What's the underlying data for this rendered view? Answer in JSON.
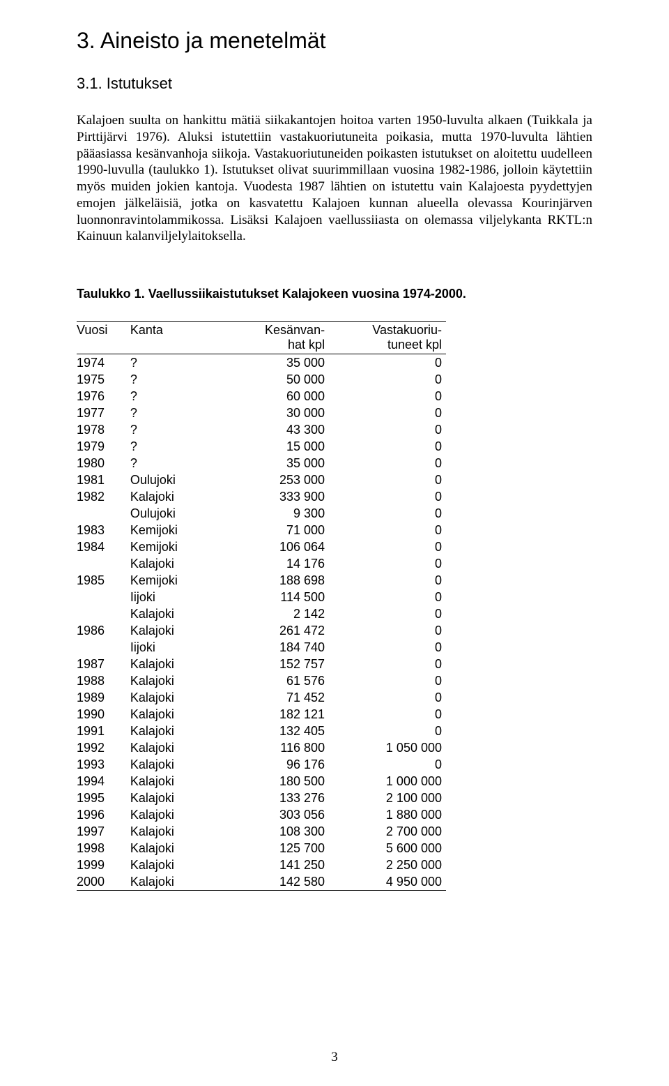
{
  "section": {
    "title": "3. Aineisto ja menetelmät",
    "subsection_title": "3.1. Istutukset",
    "body": "Kalajoen suulta on hankittu mätiä siikakantojen hoitoa varten 1950-luvulta alkaen (Tuikkala ja Pirttijärvi 1976). Aluksi istutettiin vastakuoriutuneita poikasia, mutta 1970-luvulta lähtien pääasiassa kesänvanhoja siikoja. Vastakuoriutuneiden poikasten istutukset on aloitettu uudelleen 1990-luvulla (taulukko 1). Istutukset olivat suurimmillaan vuosina 1982-1986, jolloin käytettiin myös muiden jokien kantoja. Vuodesta 1987 lähtien on istutettu vain Kalajoesta pyydettyjen emojen jälkeläisiä, jotka on kasvatettu Kalajoen kunnan alueella olevassa Kourinjärven luonnonravintolammikossa. Lisäksi Kalajoen vaellussiiasta on olemassa viljelykanta RKTL:n Kainuun kalanviljelylaitoksella."
  },
  "table": {
    "caption": "Taulukko 1. Vaellussiikaistutukset Kalajokeen vuosina 1974-2000.",
    "headers": {
      "col1": "Vuosi",
      "col2": "Kanta",
      "col3a": "Kesänvan-",
      "col3b": "hat kpl",
      "col4a": "Vastakuoriu-",
      "col4b": "tuneet kpl"
    },
    "rows": [
      {
        "year": "1974",
        "kanta": "?",
        "kesa": "35 000",
        "vasta": "0"
      },
      {
        "year": "1975",
        "kanta": "?",
        "kesa": "50 000",
        "vasta": "0"
      },
      {
        "year": "1976",
        "kanta": "?",
        "kesa": "60 000",
        "vasta": "0"
      },
      {
        "year": "1977",
        "kanta": "?",
        "kesa": "30 000",
        "vasta": "0"
      },
      {
        "year": "1978",
        "kanta": "?",
        "kesa": "43 300",
        "vasta": "0"
      },
      {
        "year": "1979",
        "kanta": "?",
        "kesa": "15 000",
        "vasta": "0"
      },
      {
        "year": "1980",
        "kanta": "?",
        "kesa": "35 000",
        "vasta": "0"
      },
      {
        "year": "1981",
        "kanta": "Oulujoki",
        "kesa": "253 000",
        "vasta": "0"
      },
      {
        "year": "1982",
        "kanta": "Kalajoki",
        "kesa": "333 900",
        "vasta": "0"
      },
      {
        "year": "",
        "kanta": "Oulujoki",
        "kesa": "9 300",
        "vasta": "0"
      },
      {
        "year": "1983",
        "kanta": "Kemijoki",
        "kesa": "71 000",
        "vasta": "0"
      },
      {
        "year": "1984",
        "kanta": "Kemijoki",
        "kesa": "106 064",
        "vasta": "0"
      },
      {
        "year": "",
        "kanta": "Kalajoki",
        "kesa": "14 176",
        "vasta": "0"
      },
      {
        "year": "1985",
        "kanta": "Kemijoki",
        "kesa": "188 698",
        "vasta": "0"
      },
      {
        "year": "",
        "kanta": "Iijoki",
        "kesa": "114 500",
        "vasta": "0"
      },
      {
        "year": "",
        "kanta": "Kalajoki",
        "kesa": "2 142",
        "vasta": "0"
      },
      {
        "year": "1986",
        "kanta": "Kalajoki",
        "kesa": "261 472",
        "vasta": "0"
      },
      {
        "year": "",
        "kanta": "Iijoki",
        "kesa": "184 740",
        "vasta": "0"
      },
      {
        "year": "1987",
        "kanta": "Kalajoki",
        "kesa": "152 757",
        "vasta": "0"
      },
      {
        "year": "1988",
        "kanta": "Kalajoki",
        "kesa": "61 576",
        "vasta": "0"
      },
      {
        "year": "1989",
        "kanta": "Kalajoki",
        "kesa": "71 452",
        "vasta": "0"
      },
      {
        "year": "1990",
        "kanta": "Kalajoki",
        "kesa": "182 121",
        "vasta": "0"
      },
      {
        "year": "1991",
        "kanta": "Kalajoki",
        "kesa": "132 405",
        "vasta": "0"
      },
      {
        "year": "1992",
        "kanta": "Kalajoki",
        "kesa": "116 800",
        "vasta": "1 050 000"
      },
      {
        "year": "1993",
        "kanta": "Kalajoki",
        "kesa": "96 176",
        "vasta": "0"
      },
      {
        "year": "1994",
        "kanta": "Kalajoki",
        "kesa": "180 500",
        "vasta": "1 000 000"
      },
      {
        "year": "1995",
        "kanta": "Kalajoki",
        "kesa": "133 276",
        "vasta": "2 100 000"
      },
      {
        "year": "1996",
        "kanta": "Kalajoki",
        "kesa": "303 056",
        "vasta": "1 880 000"
      },
      {
        "year": "1997",
        "kanta": "Kalajoki",
        "kesa": "108 300",
        "vasta": "2 700 000"
      },
      {
        "year": "1998",
        "kanta": "Kalajoki",
        "kesa": "125 700",
        "vasta": "5 600 000"
      },
      {
        "year": "1999",
        "kanta": "Kalajoki",
        "kesa": "141 250",
        "vasta": "2 250 000"
      },
      {
        "year": "2000",
        "kanta": "Kalajoki",
        "kesa": "142 580",
        "vasta": "4 950 000"
      }
    ]
  },
  "page_number": "3"
}
